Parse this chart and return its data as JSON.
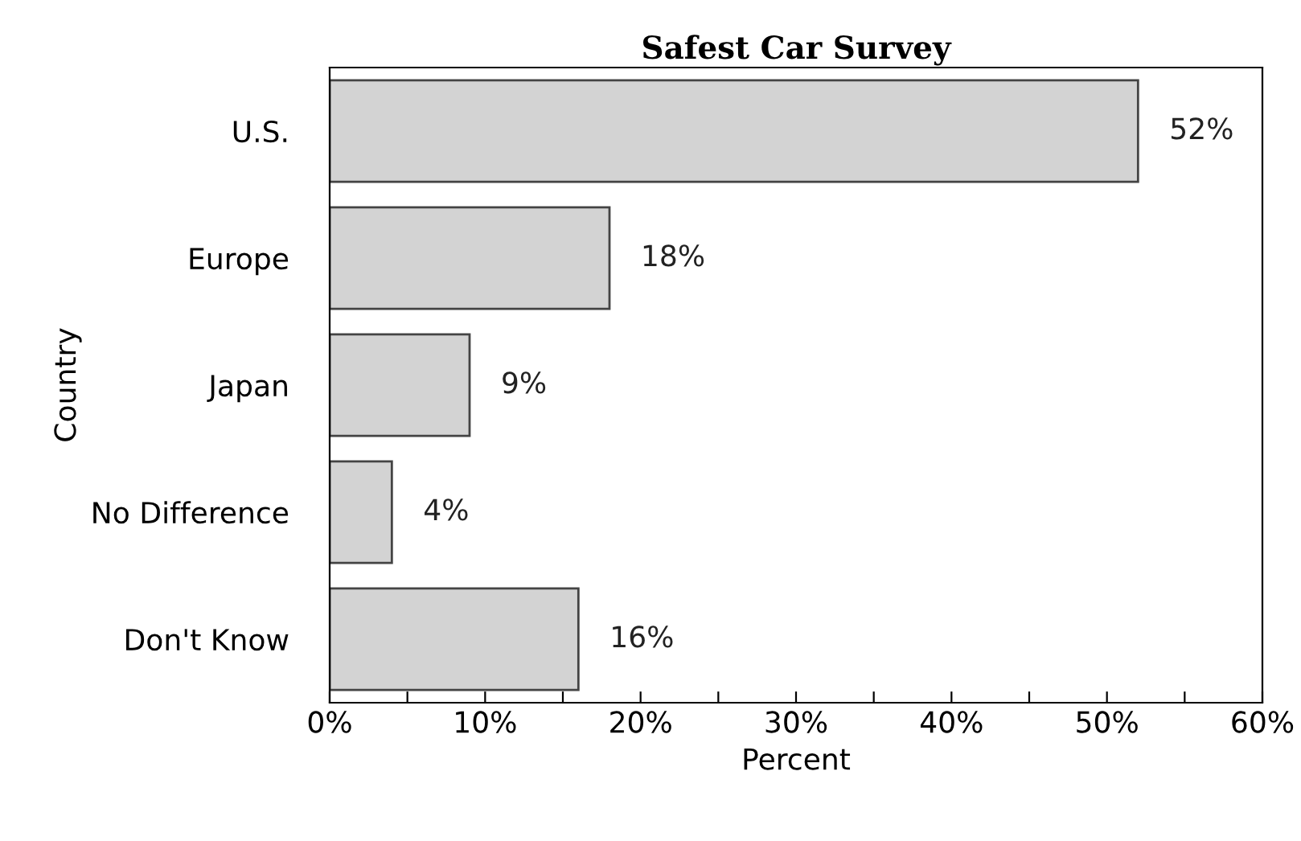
{
  "chart_data": {
    "type": "bar",
    "orientation": "horizontal",
    "title": "Safest Car Survey",
    "xlabel": "Percent",
    "ylabel": "Country",
    "categories": [
      "U.S.",
      "Europe",
      "Japan",
      "No Difference",
      "Don't Know"
    ],
    "values": [
      52,
      18,
      9,
      4,
      16
    ],
    "value_labels": [
      "52%",
      "18%",
      "9%",
      "4%",
      "16%"
    ],
    "color": "#d3d3d3",
    "xlim": [
      0,
      60
    ],
    "xticks": [
      {
        "value": 0,
        "label": "0%"
      },
      {
        "value": 5,
        "label": null
      },
      {
        "value": 10,
        "label": "10%"
      },
      {
        "value": 15,
        "label": null
      },
      {
        "value": 20,
        "label": "20%"
      },
      {
        "value": 25,
        "label": null
      },
      {
        "value": 30,
        "label": "30%"
      },
      {
        "value": 35,
        "label": null
      },
      {
        "value": 40,
        "label": "40%"
      },
      {
        "value": 45,
        "label": null
      },
      {
        "value": 50,
        "label": "50%"
      },
      {
        "value": 55,
        "label": null
      },
      {
        "value": 60,
        "label": "60%"
      }
    ],
    "grid": false,
    "legend": false
  }
}
